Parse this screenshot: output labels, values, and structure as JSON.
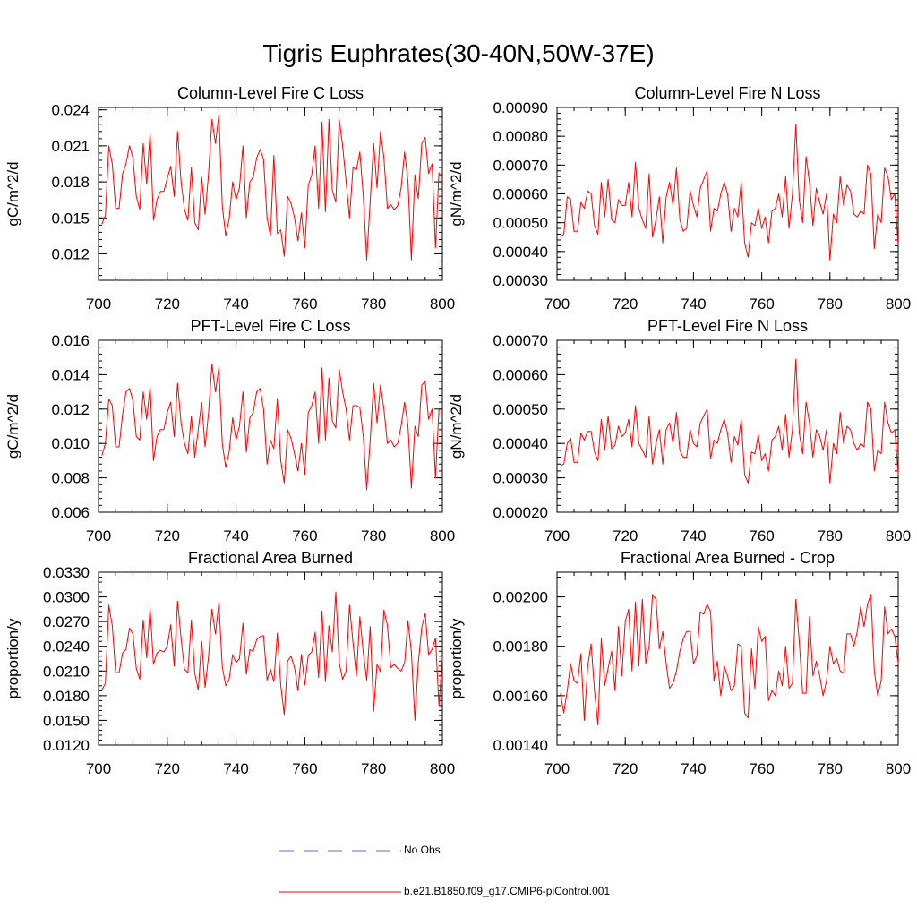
{
  "title": "Tigris Euphrates(30-40N,50W-37E)",
  "legend": [
    {
      "label": "No Obs",
      "color": "#6a6ad8",
      "style": "dashed"
    },
    {
      "label": "b.e21.B1850.f09_g17.CMIP6-piControl.001",
      "color": "#ff0000",
      "style": "solid"
    }
  ],
  "chart_data": [
    {
      "type": "line",
      "title": "Column-Level Fire C Loss",
      "ylabel": "gC/m^2/d",
      "xlim": [
        700,
        800
      ],
      "ylim": [
        0.0098,
        0.0242
      ],
      "xticks": [
        700,
        720,
        740,
        760,
        780,
        800
      ],
      "xtick_labels": [
        "700",
        "720",
        "740",
        "760",
        "780",
        "800"
      ],
      "yticks": [
        0.012,
        0.015,
        0.018,
        0.021,
        0.024
      ],
      "ytick_labels": [
        "0.012",
        "0.015",
        "0.018",
        "0.021",
        "0.024"
      ],
      "x_start": 701,
      "series": [
        {
          "name": "b.e21.B1850.f09_g17.CMIP6-piControl.001",
          "color": "#ff0000",
          "values": [
            0.0145,
            0.0152,
            0.021,
            0.0195,
            0.0158,
            0.0158,
            0.0187,
            0.0195,
            0.021,
            0.02,
            0.0168,
            0.0157,
            0.0212,
            0.0178,
            0.0221,
            0.0148,
            0.0165,
            0.0172,
            0.0172,
            0.0183,
            0.0193,
            0.0168,
            0.0222,
            0.018,
            0.0157,
            0.0148,
            0.0192,
            0.0146,
            0.014,
            0.0184,
            0.0153,
            0.0187,
            0.0232,
            0.0212,
            0.0236,
            0.016,
            0.0135,
            0.0149,
            0.018,
            0.0165,
            0.0175,
            0.021,
            0.015,
            0.018,
            0.0184,
            0.02,
            0.0207,
            0.0199,
            0.015,
            0.0135,
            0.0202,
            0.0137,
            0.014,
            0.0118,
            0.0168,
            0.0162,
            0.015,
            0.0131,
            0.0154,
            0.0125,
            0.0177,
            0.0186,
            0.021,
            0.0158,
            0.023,
            0.0155,
            0.0232,
            0.0173,
            0.0163,
            0.0232,
            0.021,
            0.018,
            0.015,
            0.0192,
            0.019,
            0.0205,
            0.0168,
            0.0115,
            0.0164,
            0.0212,
            0.0175,
            0.0222,
            0.02,
            0.0158,
            0.0161,
            0.0157,
            0.016,
            0.0175,
            0.0205,
            0.018,
            0.0115,
            0.0186,
            0.0166,
            0.0212,
            0.0217,
            0.0187,
            0.0195,
            0.0125,
            0.0188
          ]
        }
      ]
    },
    {
      "type": "line",
      "title": "Column-Level Fire N Loss",
      "ylabel": "gN/m^2/d",
      "xlim": [
        700,
        800
      ],
      "ylim": [
        0.0003,
        0.0009
      ],
      "xticks": [
        700,
        720,
        740,
        760,
        780,
        800
      ],
      "xtick_labels": [
        "700",
        "720",
        "740",
        "760",
        "780",
        "800"
      ],
      "yticks": [
        0.0003,
        0.0004,
        0.0005,
        0.0006,
        0.0007,
        0.0008,
        0.0009
      ],
      "ytick_labels": [
        "0.00030",
        "0.00040",
        "0.00050",
        "0.00060",
        "0.00070",
        "0.00080",
        "0.00090"
      ],
      "x_start": 701,
      "series": [
        {
          "name": "b.e21.B1850.f09_g17.CMIP6-piControl.001",
          "color": "#ff0000",
          "values": [
            0.00045,
            0.00046,
            0.00059,
            0.00058,
            0.00047,
            0.00047,
            0.00057,
            0.00055,
            0.00061,
            0.0006,
            0.00049,
            0.00046,
            0.00064,
            0.00052,
            0.00065,
            0.00051,
            0.0005,
            0.00058,
            0.00056,
            0.00056,
            0.00064,
            0.00052,
            0.00071,
            0.00055,
            0.00051,
            0.00048,
            0.00067,
            0.00045,
            0.00051,
            0.00059,
            0.00043,
            0.00059,
            0.00064,
            0.00056,
            0.00069,
            0.00051,
            0.00047,
            0.00048,
            0.00061,
            0.00056,
            0.00052,
            0.00062,
            0.00065,
            0.00068,
            0.00047,
            0.00055,
            0.00054,
            0.0006,
            0.00064,
            0.0006,
            0.00047,
            0.00055,
            0.00052,
            0.00064,
            0.00043,
            0.00038,
            0.0005,
            0.00049,
            0.00055,
            0.00048,
            0.00052,
            0.00043,
            0.00054,
            0.00055,
            0.0006,
            0.00052,
            0.00066,
            0.00048,
            0.0006,
            0.00084,
            0.00058,
            0.0005,
            0.00073,
            0.00064,
            0.00049,
            0.00062,
            0.00057,
            0.00053,
            0.0006,
            0.00037,
            0.00053,
            0.0005,
            0.00066,
            0.00056,
            0.00063,
            0.00061,
            0.00053,
            0.00052,
            0.00054,
            0.00053,
            0.0007,
            0.00067,
            0.00041,
            0.00053,
            0.0005,
            0.00069,
            0.00066,
            0.00058,
            0.0006,
            0.00042
          ]
        }
      ]
    },
    {
      "type": "line",
      "title": "PFT-Level Fire C Loss",
      "ylabel": "gC/m^2/d",
      "xlim": [
        700,
        800
      ],
      "ylim": [
        0.006,
        0.016
      ],
      "xticks": [
        700,
        720,
        740,
        760,
        780,
        800
      ],
      "xtick_labels": [
        "700",
        "720",
        "740",
        "760",
        "780",
        "800"
      ],
      "yticks": [
        0.006,
        0.008,
        0.01,
        0.012,
        0.014,
        0.016
      ],
      "ytick_labels": [
        "0.006",
        "0.008",
        "0.010",
        "0.012",
        "0.014",
        "0.016"
      ],
      "x_start": 701,
      "series": [
        {
          "name": "b.e21.B1850.f09_g17.CMIP6-piControl.001",
          "color": "#ff0000",
          "values": [
            0.0093,
            0.01,
            0.0126,
            0.0122,
            0.0098,
            0.0098,
            0.0117,
            0.013,
            0.0132,
            0.0125,
            0.0104,
            0.0102,
            0.013,
            0.0114,
            0.0133,
            0.009,
            0.0104,
            0.0108,
            0.0108,
            0.0118,
            0.0124,
            0.0104,
            0.0135,
            0.0112,
            0.01,
            0.0094,
            0.0116,
            0.0092,
            0.0108,
            0.0124,
            0.0098,
            0.0118,
            0.0146,
            0.013,
            0.0144,
            0.01,
            0.0086,
            0.0095,
            0.0115,
            0.0102,
            0.011,
            0.013,
            0.0095,
            0.0115,
            0.0118,
            0.013,
            0.0132,
            0.012,
            0.0088,
            0.0102,
            0.0097,
            0.0126,
            0.009,
            0.0077,
            0.0108,
            0.0103,
            0.0094,
            0.0084,
            0.01,
            0.0082,
            0.0118,
            0.0122,
            0.013,
            0.01,
            0.0144,
            0.0102,
            0.0138,
            0.0113,
            0.0109,
            0.0143,
            0.013,
            0.012,
            0.0102,
            0.0122,
            0.0122,
            0.0121,
            0.0104,
            0.0073,
            0.0102,
            0.0135,
            0.0112,
            0.0134,
            0.012,
            0.01,
            0.0102,
            0.0098,
            0.01,
            0.011,
            0.0124,
            0.011,
            0.0074,
            0.011,
            0.0104,
            0.0134,
            0.0136,
            0.0114,
            0.012,
            0.008,
            0.012
          ]
        }
      ]
    },
    {
      "type": "line",
      "title": "PFT-Level Fire N Loss",
      "ylabel": "gN/m^2/d",
      "xlim": [
        700,
        800
      ],
      "ylim": [
        0.0002,
        0.0007
      ],
      "xticks": [
        700,
        720,
        740,
        760,
        780,
        800
      ],
      "xtick_labels": [
        "700",
        "720",
        "740",
        "760",
        "780",
        "800"
      ],
      "yticks": [
        0.0002,
        0.0003,
        0.0004,
        0.0005,
        0.0006,
        0.0007
      ],
      "ytick_labels": [
        "0.00020",
        "0.00030",
        "0.00040",
        "0.00050",
        "0.00060",
        "0.00070"
      ],
      "x_start": 701,
      "series": [
        {
          "name": "b.e21.B1850.f09_g17.CMIP6-piControl.001",
          "color": "#ff0000",
          "values": [
            0.000335,
            0.00034,
            0.0004,
            0.000415,
            0.000345,
            0.000345,
            0.00043,
            0.00041,
            0.000435,
            0.000435,
            0.000375,
            0.00035,
            0.00047,
            0.00038,
            0.00048,
            0.000385,
            0.000395,
            0.00045,
            0.00042,
            0.00043,
            0.00047,
            0.00039,
            0.00051,
            0.0004,
            0.00038,
            0.00036,
            0.00048,
            0.00034,
            0.0004,
            0.00044,
            0.00034,
            0.00044,
            0.00046,
            0.0004,
            0.00049,
            0.00038,
            0.00036,
            0.00036,
            0.00044,
            0.0004,
            0.00039,
            0.00046,
            0.00048,
            0.0005,
            0.000355,
            0.00041,
            0.0004,
            0.00044,
            0.00047,
            0.00043,
            0.000345,
            0.00042,
            0.000395,
            0.00047,
            0.00031,
            0.000285,
            0.000375,
            0.00037,
            0.000425,
            0.00035,
            0.00037,
            0.00032,
            0.00041,
            0.00042,
            0.00045,
            0.00038,
            0.000485,
            0.00036,
            0.00044,
            0.000645,
            0.00043,
            0.00037,
            0.00052,
            0.00046,
            0.00036,
            0.00044,
            0.00042,
            0.00038,
            0.00044,
            0.000285,
            0.0004,
            0.00037,
            0.00049,
            0.0004,
            0.00045,
            0.00044,
            0.0004,
            0.00038,
            0.0004,
            0.00039,
            0.00052,
            0.0005,
            0.00032,
            0.00038,
            0.00037,
            0.00052,
            0.00046,
            0.00043,
            0.00044,
            0.00031
          ]
        }
      ]
    },
    {
      "type": "line",
      "title": "Fractional Area Burned",
      "ylabel": "proportion/y",
      "xlim": [
        700,
        800
      ],
      "ylim": [
        0.012,
        0.033
      ],
      "xticks": [
        700,
        720,
        740,
        760,
        780,
        800
      ],
      "xtick_labels": [
        "700",
        "720",
        "740",
        "760",
        "780",
        "800"
      ],
      "yticks": [
        0.012,
        0.015,
        0.018,
        0.021,
        0.024,
        0.027,
        0.03,
        0.033
      ],
      "ytick_labels": [
        "0.0120",
        "0.0150",
        "0.0180",
        "0.0210",
        "0.0240",
        "0.0270",
        "0.0300",
        "0.0330"
      ],
      "x_start": 701,
      "series": [
        {
          "name": "b.e21.B1850.f09_g17.CMIP6-piControl.001",
          "color": "#ff0000",
          "values": [
            0.0187,
            0.0195,
            0.029,
            0.0265,
            0.0208,
            0.0208,
            0.0232,
            0.0236,
            0.0262,
            0.0255,
            0.0213,
            0.02,
            0.0272,
            0.0226,
            0.0287,
            0.0218,
            0.0232,
            0.0235,
            0.0233,
            0.024,
            0.0266,
            0.0216,
            0.0295,
            0.025,
            0.0212,
            0.0208,
            0.0272,
            0.0207,
            0.0187,
            0.0246,
            0.019,
            0.0228,
            0.0285,
            0.0255,
            0.0293,
            0.0215,
            0.0192,
            0.02,
            0.023,
            0.022,
            0.0225,
            0.0268,
            0.0206,
            0.0236,
            0.0234,
            0.0248,
            0.0252,
            0.0253,
            0.0199,
            0.0212,
            0.0197,
            0.0256,
            0.0193,
            0.0157,
            0.0222,
            0.0228,
            0.0214,
            0.0186,
            0.023,
            0.0193,
            0.0229,
            0.0233,
            0.0257,
            0.0202,
            0.0283,
            0.0197,
            0.0265,
            0.0233,
            0.0306,
            0.022,
            0.02,
            0.021,
            0.029,
            0.0244,
            0.0204,
            0.0276,
            0.0232,
            0.0199,
            0.0264,
            0.0161,
            0.0218,
            0.0209,
            0.0284,
            0.0265,
            0.0214,
            0.0218,
            0.0213,
            0.021,
            0.022,
            0.0271,
            0.0233,
            0.015,
            0.022,
            0.0263,
            0.028,
            0.023,
            0.0236,
            0.025,
            0.0168,
            0.0227
          ]
        }
      ]
    },
    {
      "type": "line",
      "title": "Fractional Area Burned - Crop",
      "ylabel": "proportion/y",
      "xlim": [
        700,
        800
      ],
      "ylim": [
        0.0014,
        0.0021
      ],
      "xticks": [
        700,
        720,
        740,
        760,
        780,
        800
      ],
      "xtick_labels": [
        "700",
        "720",
        "740",
        "760",
        "780",
        "800"
      ],
      "yticks": [
        0.0014,
        0.0016,
        0.0018,
        0.002
      ],
      "ytick_labels": [
        "0.00140",
        "0.00160",
        "0.00180",
        "0.00200"
      ],
      "x_start": 701,
      "series": [
        {
          "name": "b.e21.B1850.f09_g17.CMIP6-piControl.001",
          "color": "#ff0000",
          "values": [
            0.00161,
            0.00153,
            0.00162,
            0.00173,
            0.00166,
            0.00165,
            0.00177,
            0.0015,
            0.00172,
            0.00181,
            0.00162,
            0.00148,
            0.00183,
            0.00164,
            0.00171,
            0.00178,
            0.00162,
            0.00188,
            0.00168,
            0.0019,
            0.00195,
            0.0017,
            0.00198,
            0.00172,
            0.00199,
            0.00173,
            0.0018,
            0.00201,
            0.00199,
            0.00179,
            0.00186,
            0.00173,
            0.00163,
            0.00165,
            0.0017,
            0.00178,
            0.00183,
            0.00186,
            0.00186,
            0.00173,
            0.00176,
            0.00194,
            0.00193,
            0.00197,
            0.00194,
            0.00166,
            0.00174,
            0.0016,
            0.00172,
            0.00168,
            0.00162,
            0.00164,
            0.00181,
            0.0018,
            0.00153,
            0.00151,
            0.00179,
            0.00163,
            0.00188,
            0.00182,
            0.00184,
            0.00158,
            0.00162,
            0.0016,
            0.0017,
            0.00164,
            0.0018,
            0.00163,
            0.00165,
            0.00199,
            0.00182,
            0.00161,
            0.00161,
            0.00192,
            0.00168,
            0.00174,
            0.00168,
            0.0016,
            0.00166,
            0.0018,
            0.00173,
            0.00175,
            0.0017,
            0.00169,
            0.00185,
            0.00185,
            0.0018,
            0.00186,
            0.00196,
            0.00188,
            0.00197,
            0.00201,
            0.0017,
            0.0016,
            0.00166,
            0.00196,
            0.00185,
            0.00187,
            0.00184,
            0.00173
          ]
        }
      ]
    }
  ]
}
